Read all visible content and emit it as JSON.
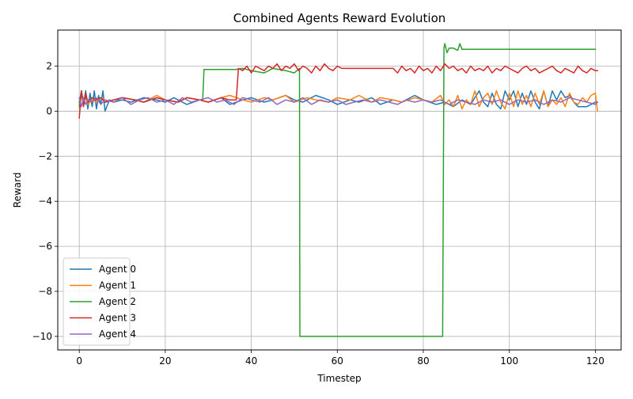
{
  "chart_data": {
    "type": "line",
    "title": "Combined Agents Reward Evolution",
    "xlabel": "Timestep",
    "ylabel": "Reward",
    "xlim": [
      -5,
      126
    ],
    "ylim": [
      -10.6,
      3.6
    ],
    "x_ticks": [
      0,
      20,
      40,
      60,
      80,
      100,
      120
    ],
    "y_ticks": [
      2,
      0,
      -2,
      -4,
      -6,
      -8,
      -10
    ],
    "x_tick_labels": [
      "0",
      "20",
      "40",
      "60",
      "80",
      "100",
      "120"
    ],
    "y_tick_labels": [
      "2",
      "0",
      "−2",
      "−4",
      "−6",
      "−8",
      "−10"
    ],
    "grid": true,
    "legend_position": "lower-left",
    "series": [
      {
        "name": "Agent 0",
        "color": "#1f77b4",
        "x": [
          0,
          0.5,
          1,
          1.5,
          2,
          2.5,
          3,
          3.5,
          4,
          4.5,
          5,
          5.5,
          6,
          7,
          8,
          10,
          12,
          15,
          18,
          20,
          22,
          25,
          28,
          30,
          33,
          35,
          38,
          40,
          43,
          45,
          48,
          50,
          52,
          55,
          58,
          60,
          63,
          65,
          68,
          70,
          73,
          75,
          78,
          80,
          83,
          85,
          87,
          89,
          91,
          93,
          94,
          95,
          96,
          97,
          98,
          99,
          100,
          101,
          102,
          103,
          104,
          105,
          106,
          107,
          108,
          109,
          110,
          111,
          112,
          113,
          114,
          115,
          116,
          117,
          118,
          119,
          120,
          120.5
        ],
        "y": [
          0.4,
          0.9,
          0.3,
          0.9,
          0.1,
          0.8,
          0.2,
          0.9,
          0.1,
          0.7,
          0.3,
          0.9,
          0.0,
          0.5,
          0.4,
          0.5,
          0.4,
          0.6,
          0.5,
          0.4,
          0.6,
          0.3,
          0.5,
          0.4,
          0.6,
          0.3,
          0.5,
          0.6,
          0.4,
          0.5,
          0.7,
          0.5,
          0.4,
          0.7,
          0.5,
          0.3,
          0.5,
          0.4,
          0.6,
          0.3,
          0.5,
          0.4,
          0.7,
          0.5,
          0.3,
          0.4,
          0.2,
          0.5,
          0.3,
          0.9,
          0.4,
          0.2,
          0.8,
          0.3,
          0.1,
          0.9,
          0.5,
          0.9,
          0.2,
          0.8,
          0.3,
          0.9,
          0.4,
          0.1,
          0.9,
          0.2,
          0.9,
          0.5,
          0.9,
          0.6,
          0.7,
          0.4,
          0.2,
          0.2,
          0.2,
          0.3,
          0.4,
          0.4
        ]
      },
      {
        "name": "Agent 1",
        "color": "#ff7f0e",
        "x": [
          0,
          0.5,
          1,
          1.5,
          2,
          3,
          4,
          5,
          6,
          8,
          10,
          13,
          15,
          18,
          20,
          23,
          25,
          28,
          30,
          33,
          35,
          38,
          40,
          43,
          45,
          48,
          50,
          53,
          55,
          58,
          60,
          63,
          65,
          68,
          70,
          73,
          75,
          78,
          80,
          82,
          84,
          85,
          86,
          87,
          88,
          89,
          90,
          91,
          92,
          93,
          94,
          95,
          96,
          97,
          98,
          99,
          100,
          101,
          102,
          103,
          104,
          105,
          106,
          107,
          108,
          109,
          110,
          111,
          112,
          113,
          114,
          115,
          116,
          117,
          118,
          119,
          120,
          120.5
        ],
        "y": [
          0.3,
          0.8,
          0.4,
          0.6,
          0.3,
          0.5,
          0.4,
          0.6,
          0.5,
          0.4,
          0.6,
          0.5,
          0.4,
          0.7,
          0.5,
          0.4,
          0.6,
          0.5,
          0.4,
          0.6,
          0.7,
          0.5,
          0.4,
          0.6,
          0.5,
          0.7,
          0.4,
          0.6,
          0.5,
          0.4,
          0.6,
          0.5,
          0.7,
          0.4,
          0.6,
          0.5,
          0.4,
          0.6,
          0.5,
          0.4,
          0.7,
          0.3,
          0.5,
          0.2,
          0.7,
          0.1,
          0.5,
          0.3,
          0.9,
          0.2,
          0.6,
          0.8,
          0.3,
          0.9,
          0.4,
          0.1,
          0.8,
          0.2,
          0.9,
          0.3,
          0.7,
          0.2,
          0.8,
          0.3,
          0.9,
          0.2,
          0.5,
          0.3,
          0.6,
          0.2,
          0.8,
          0.4,
          0.3,
          0.6,
          0.4,
          0.7,
          0.8,
          0.0
        ]
      },
      {
        "name": "Agent 2",
        "color": "#2ca02c",
        "x": [
          0,
          0.5,
          1,
          1.5,
          2,
          3,
          4,
          5,
          6,
          8,
          10,
          13,
          15,
          18,
          20,
          23,
          25,
          28,
          28.7,
          29,
          32,
          36,
          36.5,
          38,
          40,
          43,
          45,
          48,
          50,
          51.2,
          51.3,
          55,
          60,
          70,
          80,
          84.5,
          84.8,
          85,
          85.5,
          86,
          87,
          88,
          88.5,
          89,
          90,
          95,
          100,
          110,
          120
        ],
        "y": [
          0.2,
          0.9,
          0.3,
          0.7,
          0.4,
          0.6,
          0.5,
          0.6,
          0.4,
          0.5,
          0.6,
          0.5,
          0.4,
          0.6,
          0.5,
          0.4,
          0.6,
          0.5,
          0.5,
          1.85,
          1.85,
          1.85,
          1.85,
          1.9,
          1.8,
          1.7,
          1.9,
          1.8,
          1.7,
          1.9,
          -10.0,
          -10.0,
          -10.0,
          -10.0,
          -10.0,
          -10.0,
          2.8,
          3.0,
          2.6,
          2.8,
          2.8,
          2.7,
          3.0,
          2.75,
          2.75,
          2.75,
          2.75,
          2.75,
          2.75
        ]
      },
      {
        "name": "Agent 3",
        "color": "#d62728",
        "x": [
          0,
          0.5,
          1,
          1.5,
          2,
          3,
          4,
          5,
          6,
          8,
          10,
          13,
          15,
          18,
          20,
          23,
          25,
          28,
          30,
          33,
          35,
          36.5,
          37,
          38,
          39,
          40,
          41,
          42,
          43,
          44,
          45,
          46,
          47,
          48,
          49,
          50,
          51,
          52,
          53,
          54,
          55,
          56,
          57,
          58,
          59,
          60,
          61,
          62,
          65,
          68,
          70,
          72,
          73,
          74,
          75,
          76,
          77,
          78,
          79,
          80,
          81,
          82,
          83,
          84,
          85,
          86,
          87,
          88,
          89,
          90,
          91,
          92,
          93,
          94,
          95,
          96,
          97,
          98,
          99,
          100,
          101,
          102,
          103,
          104,
          105,
          106,
          107,
          108,
          109,
          110,
          111,
          112,
          113,
          114,
          115,
          116,
          117,
          118,
          119,
          120,
          120.5
        ],
        "y": [
          -0.3,
          0.9,
          0.2,
          0.8,
          0.4,
          0.6,
          0.5,
          0.6,
          0.4,
          0.5,
          0.6,
          0.5,
          0.4,
          0.6,
          0.5,
          0.4,
          0.6,
          0.5,
          0.4,
          0.6,
          0.5,
          0.5,
          1.9,
          1.8,
          2.0,
          1.7,
          2.0,
          1.9,
          1.8,
          2.0,
          1.9,
          2.1,
          1.8,
          2.0,
          1.9,
          2.1,
          1.8,
          2.0,
          1.9,
          1.7,
          2.0,
          1.8,
          2.1,
          1.9,
          1.8,
          2.0,
          1.9,
          1.9,
          1.9,
          1.9,
          1.9,
          1.9,
          1.9,
          1.7,
          2.0,
          1.8,
          1.9,
          1.7,
          2.0,
          1.8,
          1.9,
          1.7,
          2.0,
          1.8,
          2.1,
          1.9,
          2.0,
          1.8,
          1.9,
          1.7,
          2.0,
          1.8,
          1.9,
          1.8,
          2.0,
          1.7,
          1.9,
          1.8,
          2.0,
          1.9,
          1.8,
          1.7,
          1.9,
          2.0,
          1.8,
          1.9,
          1.7,
          1.8,
          1.9,
          2.0,
          1.8,
          1.7,
          1.9,
          1.8,
          1.7,
          2.0,
          1.8,
          1.7,
          1.9,
          1.8,
          1.8
        ]
      },
      {
        "name": "Agent 4",
        "color": "#9467bd",
        "x": [
          0,
          0.5,
          1,
          1.5,
          2,
          3,
          4,
          5,
          6,
          8,
          10,
          12,
          14,
          16,
          18,
          20,
          22,
          24,
          26,
          28,
          30,
          32,
          34,
          36,
          38,
          40,
          42,
          44,
          46,
          48,
          50,
          52,
          54,
          56,
          58,
          60,
          62,
          64,
          66,
          68,
          70,
          72,
          74,
          76,
          78,
          80,
          82,
          84,
          86,
          88,
          90,
          92,
          94,
          96,
          98,
          100,
          102,
          104,
          106,
          108,
          110,
          112,
          114,
          116,
          118,
          120,
          120.5
        ],
        "y": [
          0.6,
          0.2,
          0.6,
          0.3,
          0.5,
          0.4,
          0.6,
          0.3,
          0.5,
          0.4,
          0.6,
          0.3,
          0.5,
          0.6,
          0.4,
          0.5,
          0.3,
          0.6,
          0.4,
          0.5,
          0.6,
          0.4,
          0.5,
          0.3,
          0.6,
          0.5,
          0.4,
          0.6,
          0.3,
          0.5,
          0.4,
          0.6,
          0.3,
          0.5,
          0.4,
          0.5,
          0.3,
          0.4,
          0.5,
          0.4,
          0.5,
          0.4,
          0.3,
          0.5,
          0.4,
          0.5,
          0.4,
          0.5,
          0.3,
          0.5,
          0.4,
          0.3,
          0.5,
          0.4,
          0.5,
          0.3,
          0.5,
          0.4,
          0.5,
          0.3,
          0.5,
          0.4,
          0.6,
          0.5,
          0.4,
          0.3,
          0.4
        ]
      }
    ]
  }
}
